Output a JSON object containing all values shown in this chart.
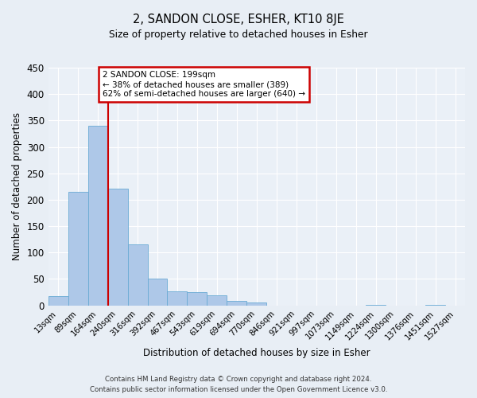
{
  "title": "2, SANDON CLOSE, ESHER, KT10 8JE",
  "subtitle": "Size of property relative to detached houses in Esher",
  "xlabel": "Distribution of detached houses by size in Esher",
  "ylabel": "Number of detached properties",
  "bin_labels": [
    "13sqm",
    "89sqm",
    "164sqm",
    "240sqm",
    "316sqm",
    "392sqm",
    "467sqm",
    "543sqm",
    "619sqm",
    "694sqm",
    "770sqm",
    "846sqm",
    "921sqm",
    "997sqm",
    "1073sqm",
    "1149sqm",
    "1224sqm",
    "1300sqm",
    "1376sqm",
    "1451sqm",
    "1527sqm"
  ],
  "bar_heights": [
    17,
    215,
    340,
    221,
    115,
    51,
    26,
    25,
    19,
    8,
    5,
    0,
    0,
    0,
    0,
    0,
    1,
    0,
    0,
    1,
    0
  ],
  "bar_color": "#aec8e8",
  "bar_edgecolor": "#6aaad4",
  "vline_color": "#cc0000",
  "vline_pos": 2.5,
  "ylim": [
    0,
    450
  ],
  "yticks": [
    0,
    50,
    100,
    150,
    200,
    250,
    300,
    350,
    400,
    450
  ],
  "annotation_title": "2 SANDON CLOSE: 199sqm",
  "annotation_line1": "← 38% of detached houses are smaller (389)",
  "annotation_line2": "62% of semi-detached houses are larger (640) →",
  "annotation_box_edgecolor": "#cc0000",
  "footer_line1": "Contains HM Land Registry data © Crown copyright and database right 2024.",
  "footer_line2": "Contains public sector information licensed under the Open Government Licence v3.0.",
  "bg_color": "#e8eef5",
  "plot_bg_color": "#eaf0f7"
}
